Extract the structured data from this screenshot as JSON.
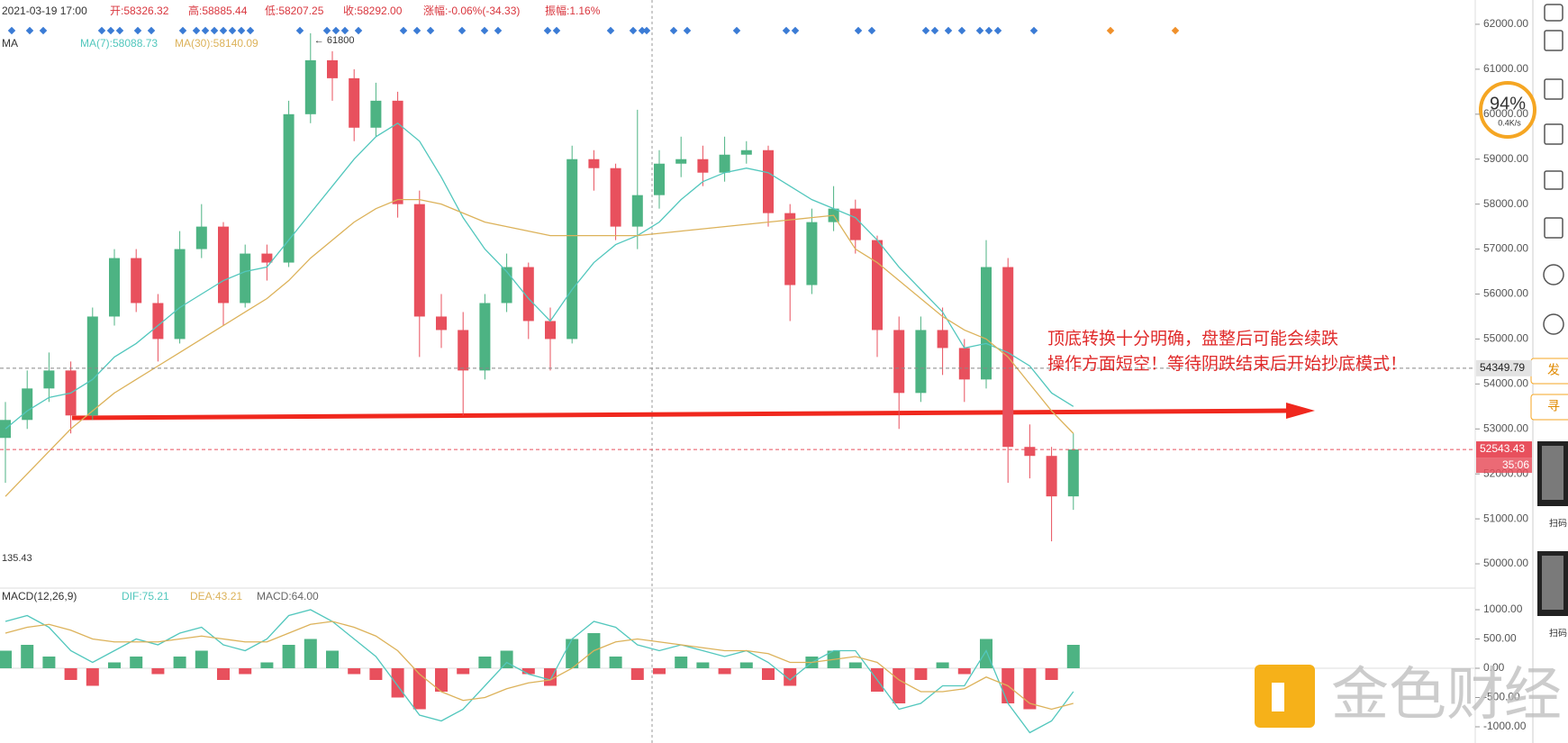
{
  "header": {
    "items": [
      "2021-03-19 17:00",
      "开:58326.32",
      "高:58885.44",
      "低:58207.25",
      "收:58292.00",
      "涨幅:-0.06%(-34.33)",
      "振幅:1.16%"
    ]
  },
  "chart_data": [
    {
      "type": "candlestick",
      "legend_title": "MA",
      "open": [
        52800,
        53200,
        53900,
        54300,
        53300,
        55500,
        56800,
        55800,
        55000,
        57000,
        57500,
        55800,
        56900,
        56700,
        60000,
        61200,
        60800,
        59700,
        60300,
        58000,
        55500,
        55200,
        54300,
        55800,
        56600,
        55400,
        55000,
        59000,
        58800,
        57500,
        58200,
        58900,
        59000,
        58700,
        59100,
        59200,
        57800,
        56200,
        57600,
        57900,
        57200,
        55200,
        53800,
        55200,
        54800,
        54100,
        56600,
        52600,
        52400,
        51500
      ],
      "close": [
        53200,
        53900,
        54300,
        53300,
        55500,
        56800,
        55800,
        55000,
        57000,
        57500,
        55800,
        56900,
        56700,
        60000,
        61200,
        60800,
        59700,
        60300,
        58000,
        55500,
        55200,
        54300,
        55800,
        56600,
        55400,
        55000,
        59000,
        58800,
        57500,
        58200,
        58900,
        59000,
        58700,
        59100,
        59200,
        57800,
        56200,
        57600,
        57900,
        57200,
        55200,
        53800,
        55200,
        54800,
        54100,
        56600,
        52600,
        52400,
        51500,
        52543.43
      ],
      "high": [
        53600,
        54300,
        54700,
        54500,
        55700,
        57000,
        57000,
        56000,
        57400,
        58000,
        57600,
        57100,
        57100,
        60300,
        61800,
        61400,
        61000,
        60700,
        60500,
        58300,
        56000,
        55600,
        56000,
        56900,
        56700,
        55700,
        59300,
        59200,
        58900,
        60100,
        59200,
        59500,
        59300,
        59500,
        59400,
        59300,
        58000,
        57900,
        58400,
        58100,
        57300,
        55500,
        55500,
        55700,
        55000,
        57200,
        56800,
        53100,
        52600,
        52900
      ],
      "low": [
        51800,
        53000,
        53600,
        52900,
        53200,
        55300,
        55600,
        54500,
        54900,
        56800,
        55300,
        55700,
        56300,
        56600,
        59800,
        60300,
        59400,
        59500,
        57700,
        54600,
        54800,
        53300,
        54100,
        55600,
        55000,
        54300,
        54900,
        58300,
        57200,
        57000,
        57900,
        58600,
        58400,
        58500,
        58900,
        57500,
        55400,
        56000,
        57400,
        56900,
        54600,
        53000,
        53600,
        54200,
        53600,
        53900,
        51800,
        51900,
        50500,
        51200
      ],
      "up_color": "#4db383",
      "down_color": "#e8505d",
      "series": [
        {
          "name": "MA(7):58088.73",
          "color": "#52c7bd",
          "values": [
            53000,
            53400,
            53700,
            53800,
            54100,
            54600,
            54900,
            55300,
            55700,
            56000,
            56300,
            56500,
            56600,
            57200,
            57800,
            58400,
            59000,
            59500,
            59800,
            59400,
            58600,
            57700,
            57000,
            56500,
            55900,
            55400,
            56100,
            56700,
            57100,
            57300,
            57600,
            58100,
            58500,
            58700,
            58800,
            58700,
            58400,
            58100,
            57900,
            57700,
            57200,
            56600,
            56100,
            55600,
            54800,
            54900,
            54700,
            54400,
            53800,
            53500
          ]
        },
        {
          "name": "MA(30):58140.09",
          "color": "#dcb25a",
          "values": [
            51500,
            52000,
            52500,
            53000,
            53400,
            53800,
            54100,
            54400,
            54700,
            55000,
            55300,
            55600,
            55900,
            56300,
            56800,
            57200,
            57600,
            57900,
            58100,
            58100,
            58000,
            57800,
            57600,
            57500,
            57400,
            57300,
            57300,
            57300,
            57300,
            57300,
            57350,
            57400,
            57450,
            57500,
            57550,
            57600,
            57650,
            57700,
            57750,
            57000,
            56700,
            56300,
            55900,
            55500,
            55200,
            55000,
            54600,
            54000,
            53400,
            52900
          ]
        }
      ],
      "ylim": [
        49500,
        62500
      ],
      "yticks": [
        {
          "value": 50000,
          "label": "50000.00"
        },
        {
          "value": 51000,
          "label": "51000.00"
        },
        {
          "value": 52000,
          "label": "52000.00"
        },
        {
          "value": 53000,
          "label": "53000.00"
        },
        {
          "value": 54000,
          "label": "54000.00"
        },
        {
          "value": 55000,
          "label": "55000.00"
        },
        {
          "value": 56000,
          "label": "56000.00"
        },
        {
          "value": 57000,
          "label": "57000.00"
        },
        {
          "value": 58000,
          "label": "58000.00"
        },
        {
          "value": 59000,
          "label": "59000.00"
        },
        {
          "value": 60000,
          "label": "60000.00"
        },
        {
          "value": 61000,
          "label": "61000.00"
        },
        {
          "value": 62000,
          "label": "62000.00"
        }
      ],
      "high_label": "← 61800",
      "low_label": "135.43",
      "price_lines": [
        {
          "value": 54349.79,
          "label": "54349.79"
        },
        {
          "value": 52543.43,
          "label": "52543.43"
        }
      ],
      "countdown": "35:06",
      "annotations": [
        "顶底转换十分明确，盘整后可能会续跌",
        "操作方面短空！等待阴跌结束后开始抄底模式！"
      ]
    },
    {
      "type": "macd",
      "legend_title": "MACD(12,26,9)",
      "series": [
        {
          "name": "DIF:75.21",
          "color": "#52c7bd",
          "values": [
            800,
            900,
            700,
            300,
            100,
            300,
            500,
            400,
            600,
            700,
            400,
            300,
            500,
            900,
            1000,
            800,
            500,
            200,
            -300,
            -800,
            -900,
            -700,
            -300,
            100,
            -100,
            -200,
            500,
            800,
            700,
            400,
            300,
            400,
            300,
            200,
            300,
            100,
            -200,
            100,
            300,
            300,
            -200,
            -700,
            -600,
            -300,
            -300,
            300,
            -600,
            -1100,
            -900,
            -400
          ]
        },
        {
          "name": "DEA:43.21",
          "color": "#dcb25a",
          "values": [
            600,
            700,
            750,
            650,
            500,
            450,
            450,
            450,
            500,
            550,
            500,
            450,
            450,
            600,
            750,
            800,
            700,
            550,
            300,
            -100,
            -400,
            -550,
            -500,
            -350,
            -250,
            -200,
            0,
            300,
            450,
            500,
            450,
            400,
            350,
            300,
            300,
            250,
            100,
            100,
            150,
            200,
            100,
            -200,
            -400,
            -400,
            -350,
            -150,
            -300,
            -600,
            -700,
            -600
          ]
        },
        {
          "name": "MACD:64.00",
          "color": "#666666",
          "values": [
            300,
            400,
            200,
            -200,
            -300,
            100,
            200,
            -100,
            200,
            300,
            -200,
            -100,
            100,
            400,
            500,
            300,
            -100,
            -200,
            -500,
            -700,
            -400,
            -100,
            200,
            300,
            -100,
            -300,
            500,
            600,
            200,
            -200,
            -100,
            200,
            100,
            -100,
            100,
            -200,
            -300,
            200,
            300,
            100,
            -400,
            -600,
            -200,
            100,
            -100,
            500,
            -600,
            -700,
            -200,
            400
          ]
        }
      ],
      "ylim": [
        -1200,
        1200
      ],
      "yticks": [
        {
          "value": 1000,
          "label": "1000.00"
        },
        {
          "value": 500,
          "label": "500.00"
        },
        {
          "value": 0,
          "label": "0.00"
        },
        {
          "value": -500,
          "label": "-500.00"
        },
        {
          "value": -1000,
          "label": "-1000.00"
        }
      ]
    }
  ],
  "sidebar": {
    "speed_percent": "94%",
    "speed_rate": "0.4K/s",
    "buttons": [
      "发",
      "寻"
    ],
    "qr_captions": [
      "扫码",
      "扫码"
    ]
  },
  "watermark": "金色财经"
}
